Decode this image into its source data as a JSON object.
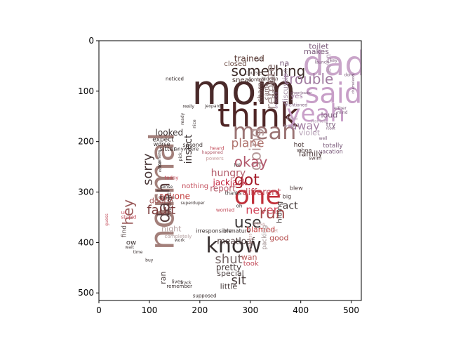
{
  "chart_data": {
    "type": "image",
    "title": "",
    "xlabel": "",
    "ylabel": "",
    "xlim": [
      0,
      520
    ],
    "ylim": [
      515,
      0
    ],
    "x_ticks": [
      0,
      100,
      200,
      300,
      400,
      500
    ],
    "y_ticks": [
      0,
      100,
      200,
      300,
      400,
      500
    ],
    "grid": false,
    "image_content": "word cloud",
    "words": [
      {
        "text": "mom",
        "x": 184,
        "y": 103,
        "size": 58,
        "color": "#4a2a2a",
        "rot": 0
      },
      {
        "text": "think",
        "x": 235,
        "y": 153,
        "size": 46,
        "color": "#4f2626",
        "rot": 0
      },
      {
        "text": "normal",
        "x": 130,
        "y": 298,
        "size": 48,
        "color": "#a37f7a",
        "rot": -90
      },
      {
        "text": "mean",
        "x": 265,
        "y": 182,
        "size": 32,
        "color": "#9a7373",
        "rot": 0
      },
      {
        "text": "something",
        "x": 262,
        "y": 62,
        "size": 20,
        "color": "#3d2b28",
        "rot": 0
      },
      {
        "text": "trained",
        "x": 268,
        "y": 36,
        "size": 12,
        "color": "#5a3a34",
        "rot": 0
      },
      {
        "text": "closed",
        "x": 248,
        "y": 46,
        "size": 10,
        "color": "#6b4a42",
        "rot": 0
      },
      {
        "text": "sneak",
        "x": 264,
        "y": 78,
        "size": 10,
        "color": "#4a3530",
        "rot": 0
      },
      {
        "text": "course",
        "x": 290,
        "y": 64,
        "size": 7,
        "color": "#5a4a4a",
        "rot": 0
      },
      {
        "text": "control",
        "x": 296,
        "y": 77,
        "size": 7,
        "color": "#5a4a4a",
        "rot": 0
      },
      {
        "text": "hidden",
        "x": 322,
        "y": 76,
        "size": 7,
        "color": "#5a4a4a",
        "rot": 0
      },
      {
        "text": "last",
        "x": 310,
        "y": 38,
        "size": 6,
        "color": "#5a4a4a",
        "rot": 0
      },
      {
        "text": "remote",
        "x": 342,
        "y": 91,
        "size": 18,
        "color": "#a38e8e",
        "rot": -90
      },
      {
        "text": "charge",
        "x": 320,
        "y": 98,
        "size": 10,
        "color": "#6b5050",
        "rot": -90
      },
      {
        "text": "came",
        "x": 332,
        "y": 100,
        "size": 9,
        "color": "#7a6565",
        "rot": -90
      },
      {
        "text": "marriage",
        "x": 346,
        "y": 92,
        "size": 7,
        "color": "#7a6565",
        "rot": -90
      },
      {
        "text": "going",
        "x": 312,
        "y": 215,
        "size": 22,
        "color": "#b59b9b",
        "rot": -90
      },
      {
        "text": "plane",
        "x": 262,
        "y": 204,
        "size": 17,
        "color": "#b0756f",
        "rot": 0
      },
      {
        "text": "okay",
        "x": 268,
        "y": 242,
        "size": 20,
        "color": "#b2576b",
        "rot": 0
      },
      {
        "text": "sorry",
        "x": 98,
        "y": 255,
        "size": 18,
        "color": "#4a3838",
        "rot": -90
      },
      {
        "text": "insect",
        "x": 178,
        "y": 215,
        "size": 14,
        "color": "#3a3030",
        "rot": -90
      },
      {
        "text": "hungry",
        "x": 222,
        "y": 263,
        "size": 14,
        "color": "#b35d6b",
        "rot": 0
      },
      {
        "text": "jackjack",
        "x": 226,
        "y": 282,
        "size": 12,
        "color": "#c21e38",
        "rot": 0
      },
      {
        "text": "got",
        "x": 268,
        "y": 278,
        "size": 22,
        "color": "#a51c2a",
        "rot": 0
      },
      {
        "text": "dash",
        "x": 130,
        "y": 321,
        "size": 24,
        "color": "#5a3e3e",
        "rot": -90
      },
      {
        "text": "one",
        "x": 268,
        "y": 310,
        "size": 36,
        "color": "#c1303a",
        "rot": 0
      },
      {
        "text": "never",
        "x": 291,
        "y": 337,
        "size": 16,
        "color": "#d1455a",
        "rot": 0
      },
      {
        "text": "use",
        "x": 268,
        "y": 362,
        "size": 22,
        "color": "#3d3a3a",
        "rot": 0
      },
      {
        "text": "know",
        "x": 212,
        "y": 408,
        "size": 30,
        "color": "#3a3232",
        "rot": 0
      },
      {
        "text": "shut",
        "x": 230,
        "y": 434,
        "size": 18,
        "color": "#7a6b6b",
        "rot": 0
      },
      {
        "text": "pretty",
        "x": 232,
        "y": 450,
        "size": 12,
        "color": "#4a3e3e",
        "rot": 0
      },
      {
        "text": "special",
        "x": 234,
        "y": 462,
        "size": 11,
        "color": "#4a3e3e",
        "rot": 0
      },
      {
        "text": "sit",
        "x": 262,
        "y": 476,
        "size": 18,
        "color": "#4a3e3e",
        "rot": 0
      },
      {
        "text": "little",
        "x": 240,
        "y": 488,
        "size": 11,
        "color": "#4a3e3e",
        "rot": 0
      },
      {
        "text": "ran",
        "x": 128,
        "y": 470,
        "size": 11,
        "color": "#4a3e3e",
        "rot": -90
      },
      {
        "text": "different",
        "x": 284,
        "y": 301,
        "size": 13,
        "color": "#c24a58",
        "rot": 0
      },
      {
        "text": "report",
        "x": 220,
        "y": 294,
        "size": 12,
        "color": "#b55d6b",
        "rot": 0
      },
      {
        "text": "nothing",
        "x": 164,
        "y": 288,
        "size": 10,
        "color": "#c24a58",
        "rot": 0
      },
      {
        "text": "fault",
        "x": 95,
        "y": 337,
        "size": 18,
        "color": "#7a3a3a",
        "rot": 0
      },
      {
        "text": "hey",
        "x": 60,
        "y": 340,
        "size": 20,
        "color": "#9a5a5a",
        "rot": -90
      },
      {
        "text": "anyone",
        "x": 119,
        "y": 309,
        "size": 12,
        "color": "#c23d3d",
        "rot": 0
      },
      {
        "text": "doors",
        "x": 100,
        "y": 318,
        "size": 11,
        "color": "#a35555",
        "rot": 0
      },
      {
        "text": "thought",
        "x": 140,
        "y": 325,
        "size": 9,
        "color": "#5a4040",
        "rot": -90
      },
      {
        "text": "run",
        "x": 318,
        "y": 344,
        "size": 22,
        "color": "#a34a4a",
        "rot": 0
      },
      {
        "text": "blamed",
        "x": 292,
        "y": 375,
        "size": 11,
        "color": "#c23d3d",
        "rot": 0
      },
      {
        "text": "good",
        "x": 338,
        "y": 392,
        "size": 11,
        "color": "#b34a4a",
        "rot": 0
      },
      {
        "text": "meatloaf",
        "x": 234,
        "y": 398,
        "size": 12,
        "color": "#4a3838",
        "rot": 0
      },
      {
        "text": "night",
        "x": 124,
        "y": 374,
        "size": 11,
        "color": "#b5a0a0",
        "rot": 0
      },
      {
        "text": "irresponsible",
        "x": 192,
        "y": 377,
        "size": 8,
        "color": "#3a3030",
        "rot": 0
      },
      {
        "text": "immature",
        "x": 246,
        "y": 377,
        "size": 8,
        "color": "#3a3030",
        "rot": 0
      },
      {
        "text": "act",
        "x": 364,
        "y": 328,
        "size": 14,
        "color": "#3a3030",
        "rot": 0
      },
      {
        "text": "hiding",
        "x": 358,
        "y": 340,
        "size": 10,
        "color": "#3a3030",
        "rot": -90
      },
      {
        "text": "dad",
        "x": 404,
        "y": 50,
        "size": 48,
        "color": "#c9a5c9",
        "rot": 0
      },
      {
        "text": "said",
        "x": 408,
        "y": 108,
        "size": 40,
        "color": "#c79ec7",
        "rot": 0
      },
      {
        "text": "yeah",
        "x": 372,
        "y": 147,
        "size": 34,
        "color": "#c9a0c9",
        "rot": 0
      },
      {
        "text": "trouble",
        "x": 366,
        "y": 78,
        "size": 20,
        "color": "#a07aa0",
        "rot": 0
      },
      {
        "text": "away",
        "x": 379,
        "y": 170,
        "size": 16,
        "color": "#a380a3",
        "rot": 0
      },
      {
        "text": "makes",
        "x": 406,
        "y": 22,
        "size": 11,
        "color": "#7a5a7a",
        "rot": 0
      },
      {
        "text": "toilet",
        "x": 416,
        "y": 12,
        "size": 11,
        "color": "#7a5a7a",
        "rot": 0
      },
      {
        "text": "discussion",
        "x": 370,
        "y": 91,
        "size": 10,
        "color": "#a08aa0",
        "rot": -90
      },
      {
        "text": "loud",
        "x": 440,
        "y": 148,
        "size": 11,
        "color": "#7a5a7a",
        "rot": 0
      },
      {
        "text": "try",
        "x": 450,
        "y": 166,
        "size": 10,
        "color": "#7a5a7a",
        "rot": 0
      },
      {
        "text": "violet",
        "x": 396,
        "y": 183,
        "size": 11,
        "color": "#b5a0b5",
        "rot": 0
      },
      {
        "text": "even",
        "x": 455,
        "y": 45,
        "size": 11,
        "color": "#b5a0b5",
        "rot": -90
      },
      {
        "text": "totally",
        "x": 444,
        "y": 208,
        "size": 9,
        "color": "#7a5a7a",
        "rot": 0
      },
      {
        "text": "vacation",
        "x": 436,
        "y": 220,
        "size": 8,
        "color": "#7a5a7a",
        "rot": 0
      },
      {
        "text": "family",
        "x": 396,
        "y": 225,
        "size": 11,
        "color": "#4a3838",
        "rot": 0
      },
      {
        "text": "hot",
        "x": 386,
        "y": 207,
        "size": 9,
        "color": "#4a3838",
        "rot": 0
      },
      {
        "text": "whoa",
        "x": 392,
        "y": 217,
        "size": 8,
        "color": "#4a3838",
        "rot": 0
      },
      {
        "text": "swim",
        "x": 416,
        "y": 233,
        "size": 7,
        "color": "#4a3838",
        "rot": 0
      },
      {
        "text": "blew",
        "x": 378,
        "y": 292,
        "size": 8,
        "color": "#4a3838",
        "rot": 0
      },
      {
        "text": "big",
        "x": 364,
        "y": 309,
        "size": 8,
        "color": "#4a3838",
        "rot": 0
      },
      {
        "text": "looked",
        "x": 112,
        "y": 183,
        "size": 12,
        "color": "#3a3030",
        "rot": 0
      },
      {
        "text": "expect",
        "x": 106,
        "y": 196,
        "size": 9,
        "color": "#3a3030",
        "rot": 0
      },
      {
        "text": "worse",
        "x": 108,
        "y": 205,
        "size": 8,
        "color": "#3a3030",
        "rot": 0
      },
      {
        "text": "sitter",
        "x": 120,
        "y": 215,
        "size": 9,
        "color": "#3a3030",
        "rot": 0
      },
      {
        "text": "anywhere",
        "x": 150,
        "y": 215,
        "size": 7,
        "color": "#3a3030",
        "rot": 0
      },
      {
        "text": "second",
        "x": 166,
        "y": 207,
        "size": 8,
        "color": "#3a3030",
        "rot": 0
      },
      {
        "text": "remember",
        "x": 134,
        "y": 487,
        "size": 7,
        "color": "#3a3030",
        "rot": 0
      },
      {
        "text": "lives",
        "x": 144,
        "y": 478,
        "size": 7,
        "color": "#3a3030",
        "rot": 0
      },
      {
        "text": "supposed",
        "x": 186,
        "y": 506,
        "size": 7,
        "color": "#3a3030",
        "rot": 0
      },
      {
        "text": "took",
        "x": 286,
        "y": 442,
        "size": 10,
        "color": "#c24a58",
        "rot": 0
      },
      {
        "text": "wan",
        "x": 282,
        "y": 430,
        "size": 11,
        "color": "#b35555",
        "rot": 0
      },
      {
        "text": "packing",
        "x": 328,
        "y": 390,
        "size": 9,
        "color": "#a09090",
        "rot": -90
      },
      {
        "text": "find",
        "x": 50,
        "y": 378,
        "size": 9,
        "color": "#5a4a4a",
        "rot": -90
      },
      {
        "text": "ow",
        "x": 54,
        "y": 400,
        "size": 10,
        "color": "#3a3030",
        "rot": 0
      },
      {
        "text": "wait",
        "x": 52,
        "y": 410,
        "size": 6,
        "color": "#3a3030",
        "rot": 0
      },
      {
        "text": "time",
        "x": 68,
        "y": 420,
        "size": 6,
        "color": "#3a3030",
        "rot": 0
      },
      {
        "text": "buy",
        "x": 92,
        "y": 436,
        "size": 6,
        "color": "#3a3030",
        "rot": 0
      },
      {
        "text": "work",
        "x": 150,
        "y": 396,
        "size": 6,
        "color": "#3a3030",
        "rot": 0
      },
      {
        "text": "completely",
        "x": 130,
        "y": 388,
        "size": 7,
        "color": "#b5a0a0",
        "rot": 0
      },
      {
        "text": "stupid",
        "x": 44,
        "y": 350,
        "size": 7,
        "color": "#c24a58",
        "rot": 0
      },
      {
        "text": "guess",
        "x": 16,
        "y": 355,
        "size": 6,
        "color": "#c24a58",
        "rot": -90
      },
      {
        "text": "us",
        "x": 44,
        "y": 341,
        "size": 7,
        "color": "#c24a58",
        "rot": 0
      },
      {
        "text": "thanks",
        "x": 250,
        "y": 303,
        "size": 7,
        "color": "#3a3030",
        "rot": 0
      },
      {
        "text": "lot",
        "x": 268,
        "y": 247,
        "size": 7,
        "color": "#3a3030",
        "rot": 0
      },
      {
        "text": "oh",
        "x": 272,
        "y": 328,
        "size": 7,
        "color": "#3a3030",
        "rot": 0
      },
      {
        "text": "worried",
        "x": 232,
        "y": 336,
        "size": 7,
        "color": "#c24a58",
        "rot": 0
      },
      {
        "text": "heard",
        "x": 220,
        "y": 214,
        "size": 7,
        "color": "#c24a58",
        "rot": 0
      },
      {
        "text": "powers",
        "x": 212,
        "y": 234,
        "size": 7,
        "color": "#c9a0a0",
        "rot": 0
      },
      {
        "text": "today",
        "x": 130,
        "y": 272,
        "size": 7,
        "color": "#c24a58",
        "rot": 0
      },
      {
        "text": "happened",
        "x": 204,
        "y": 222,
        "size": 6,
        "color": "#b35d6b",
        "rot": 0
      },
      {
        "text": "jeopardy",
        "x": 210,
        "y": 130,
        "size": 6,
        "color": "#3a3030",
        "rot": 0
      },
      {
        "text": "really",
        "x": 166,
        "y": 131,
        "size": 6,
        "color": "#3a3030",
        "rot": 0
      },
      {
        "text": "ready",
        "x": 166,
        "y": 155,
        "size": 6,
        "color": "#3a3030",
        "rot": -90
      },
      {
        "text": "nice",
        "x": 190,
        "y": 165,
        "size": 6,
        "color": "#3a3030",
        "rot": -90
      },
      {
        "text": "nowhere",
        "x": 120,
        "y": 235,
        "size": 6,
        "color": "#3a3030",
        "rot": -90
      },
      {
        "text": "voice",
        "x": 122,
        "y": 250,
        "size": 6,
        "color": "#3a3030",
        "rot": -90
      },
      {
        "text": "pick",
        "x": 162,
        "y": 230,
        "size": 6,
        "color": "#3a3030",
        "rot": -90
      },
      {
        "text": "superduper",
        "x": 162,
        "y": 322,
        "size": 6,
        "color": "#3a3030",
        "rot": 0
      },
      {
        "text": "dresses",
        "x": 118,
        "y": 311,
        "size": 6,
        "color": "#3a3030",
        "rot": 0
      },
      {
        "text": "forget",
        "x": 330,
        "y": 377,
        "size": 6,
        "color": "#c9a0a0",
        "rot": 0
      },
      {
        "text": "friday",
        "x": 306,
        "y": 364,
        "size": 6,
        "color": "#c9a0a0",
        "rot": 0
      },
      {
        "text": "progress",
        "x": 300,
        "y": 400,
        "size": 6,
        "color": "#c9a0a0",
        "rot": -90
      },
      {
        "text": "yes",
        "x": 380,
        "y": 110,
        "size": 10,
        "color": "#a07aa0",
        "rot": 0
      },
      {
        "text": "na",
        "x": 358,
        "y": 45,
        "size": 11,
        "color": "#7a5a7a",
        "rot": 0
      },
      {
        "text": "avoided",
        "x": 352,
        "y": 118,
        "size": 6,
        "color": "#7a5a7a",
        "rot": -90
      },
      {
        "text": "mentioned",
        "x": 368,
        "y": 128,
        "size": 6,
        "color": "#7a5a7a",
        "rot": 0
      },
      {
        "text": "boss",
        "x": 372,
        "y": 154,
        "size": 7,
        "color": "#b5a0b5",
        "rot": 0
      },
      {
        "text": "know",
        "x": 366,
        "y": 170,
        "size": 6,
        "color": "#b5a0b5",
        "rot": 0
      },
      {
        "text": "wanted",
        "x": 420,
        "y": 160,
        "size": 6,
        "color": "#b5a0b5",
        "rot": 0
      },
      {
        "text": "well",
        "x": 436,
        "y": 194,
        "size": 6,
        "color": "#7a5a7a",
        "rot": 0
      },
      {
        "text": "either",
        "x": 466,
        "y": 134,
        "size": 6,
        "color": "#7a5a7a",
        "rot": 0
      },
      {
        "text": "mind",
        "x": 472,
        "y": 143,
        "size": 6,
        "color": "#7a5a7a",
        "rot": 0
      },
      {
        "text": "done",
        "x": 486,
        "y": 68,
        "size": 6,
        "color": "#7a5a7a",
        "rot": 0
      },
      {
        "text": "key",
        "x": 458,
        "y": 40,
        "size": 6,
        "color": "#7a5a7a",
        "rot": 0
      },
      {
        "text": "launch",
        "x": 428,
        "y": 43,
        "size": 6,
        "color": "#7a5a7a",
        "rot": 0
      },
      {
        "text": "chameleon",
        "x": 504,
        "y": 86,
        "size": 5,
        "color": "#7a5a7a",
        "rot": -90
      },
      {
        "text": "robot",
        "x": 450,
        "y": 174,
        "size": 5,
        "color": "#7a5a7a",
        "rot": 0
      },
      {
        "text": "cheerleader",
        "x": 380,
        "y": 104,
        "size": 5,
        "color": "#7a5a7a",
        "rot": 0
      },
      {
        "text": "noticed",
        "x": 132,
        "y": 76,
        "size": 7,
        "color": "#3a3030",
        "rot": 0
      },
      {
        "text": "track",
        "x": 162,
        "y": 480,
        "size": 6,
        "color": "#3a3030",
        "rot": 0
      },
      {
        "text": "sense",
        "x": 122,
        "y": 290,
        "size": 6,
        "color": "#3a3030",
        "rot": 0
      }
    ],
    "colors": {
      "dark_brown": "#4a2a2a",
      "red": "#c1303a",
      "lilac": "#c9a5c9"
    }
  }
}
